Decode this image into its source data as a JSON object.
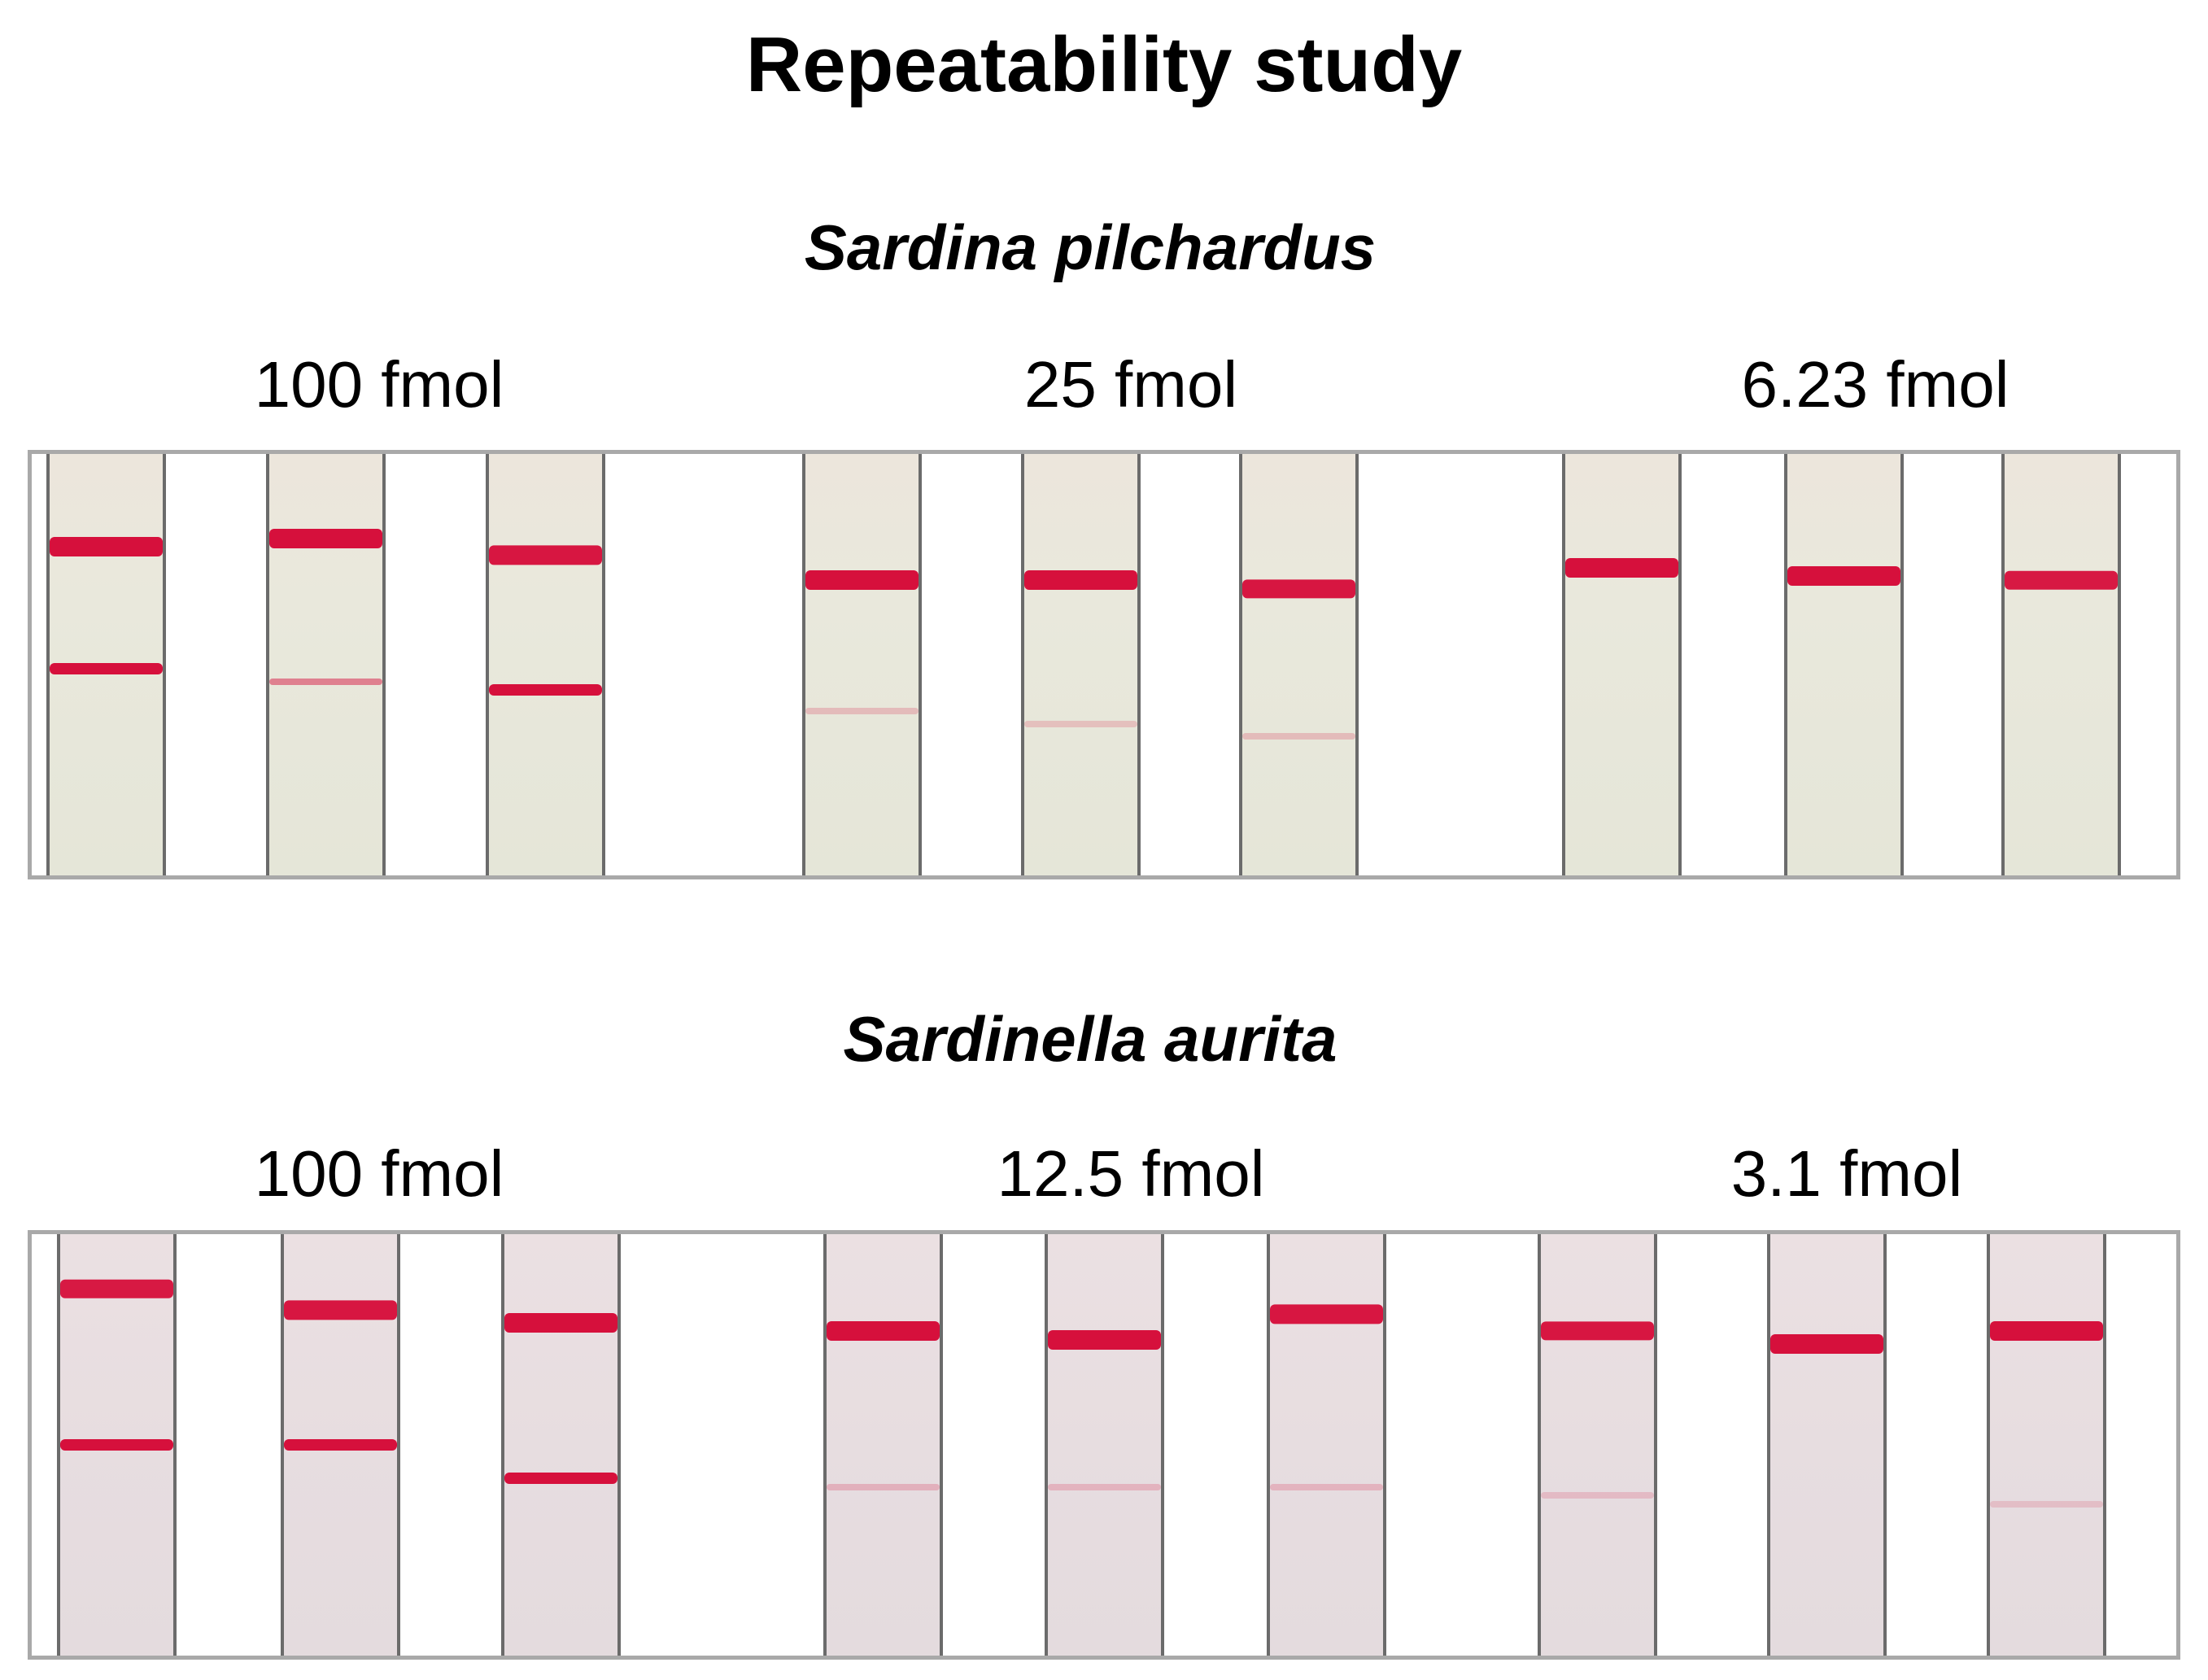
{
  "title": "Repeatability study",
  "colors": {
    "band": "#d6103c",
    "strip_top": "#e9e8dc",
    "strip_bottom": "#e4dbde"
  },
  "panels": [
    {
      "species": "Sardina pilchardus",
      "groups": [
        {
          "concentration": "100 fmol",
          "strips": [
            {
              "test_line": 1.0,
              "control_line": 0.55
            },
            {
              "test_line": 1.0,
              "control_line": 0.45
            },
            {
              "test_line": 0.95,
              "control_line": 0.55
            }
          ]
        },
        {
          "concentration": "25 fmol",
          "strips": [
            {
              "test_line": 1.0,
              "control_line": 0.1
            },
            {
              "test_line": 1.0,
              "control_line": 0.08
            },
            {
              "test_line": 0.95,
              "control_line": 0.1
            }
          ]
        },
        {
          "concentration": "6.23 fmol",
          "strips": [
            {
              "test_line": 1.0,
              "control_line": 0.0
            },
            {
              "test_line": 1.0,
              "control_line": 0.0
            },
            {
              "test_line": 0.9,
              "control_line": 0.0
            }
          ]
        }
      ]
    },
    {
      "species": "Sardinella aurita",
      "groups": [
        {
          "concentration": "100 fmol",
          "strips": [
            {
              "test_line": 0.9,
              "control_line": 0.85
            },
            {
              "test_line": 0.95,
              "control_line": 0.85
            },
            {
              "test_line": 1.0,
              "control_line": 0.9
            }
          ]
        },
        {
          "concentration": "12.5 fmol",
          "strips": [
            {
              "test_line": 1.0,
              "control_line": 0.12
            },
            {
              "test_line": 1.0,
              "control_line": 0.1
            },
            {
              "test_line": 0.95,
              "control_line": 0.1
            }
          ]
        },
        {
          "concentration": "3.1 fmol",
          "strips": [
            {
              "test_line": 0.95,
              "control_line": 0.06
            },
            {
              "test_line": 1.0,
              "control_line": 0.0
            },
            {
              "test_line": 1.0,
              "control_line": 0.04
            }
          ]
        }
      ]
    }
  ]
}
